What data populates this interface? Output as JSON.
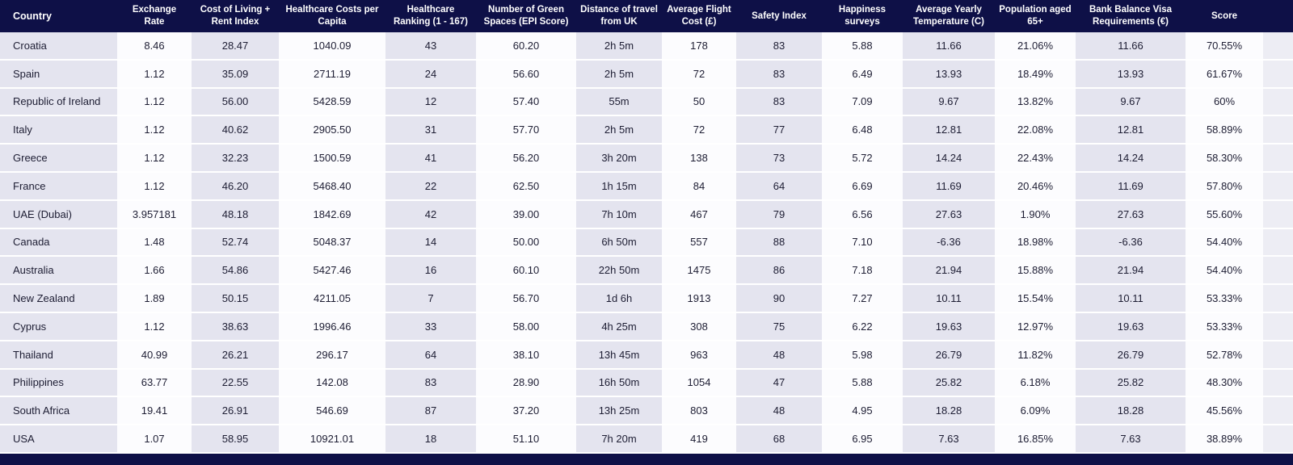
{
  "colors": {
    "header_bg": "#0e1047",
    "shaded_column_bg": "#e4e4ef",
    "row_text": "#1d1d33"
  },
  "column_keys": [
    "country",
    "exchange_rate",
    "cost_of_living_rent_index",
    "healthcare_costs_per_capita",
    "healthcare_ranking",
    "green_spaces_epi_score",
    "distance_of_travel_from_uk",
    "average_flight_cost",
    "safety_index",
    "happiness_surveys",
    "average_yearly_temperature",
    "population_aged_65_plus",
    "bank_balance_visa_requirements",
    "score"
  ],
  "chart_data": {
    "type": "table",
    "title": "",
    "columns": [
      "Country",
      "Exchange Rate",
      "Cost of Living + Rent Index",
      "Healthcare Costs per Capita",
      "Healthcare Ranking (1 - 167)",
      "Number of Green Spaces (EPI Score)",
      "Distance of travel from UK",
      "Average Flight Cost (£)",
      "Safety Index",
      "Happiness surveys",
      "Average Yearly Temperature (C)",
      "Population aged 65+",
      "Bank Balance Visa Requirements (€)",
      "Score"
    ],
    "rows": [
      [
        "Croatia",
        "8.46",
        "28.47",
        "1040.09",
        "43",
        "60.20",
        "2h 5m",
        "178",
        "83",
        "5.88",
        "11.66",
        "21.06%",
        "11.66",
        "70.55%"
      ],
      [
        "Spain",
        "1.12",
        "35.09",
        "2711.19",
        "24",
        "56.60",
        "2h 5m",
        "72",
        "83",
        "6.49",
        "13.93",
        "18.49%",
        "13.93",
        "61.67%"
      ],
      [
        "Republic of Ireland",
        "1.12",
        "56.00",
        "5428.59",
        "12",
        "57.40",
        "55m",
        "50",
        "83",
        "7.09",
        "9.67",
        "13.82%",
        "9.67",
        "60%"
      ],
      [
        "Italy",
        "1.12",
        "40.62",
        "2905.50",
        "31",
        "57.70",
        "2h 5m",
        "72",
        "77",
        "6.48",
        "12.81",
        "22.08%",
        "12.81",
        "58.89%"
      ],
      [
        "Greece",
        "1.12",
        "32.23",
        "1500.59",
        "41",
        "56.20",
        "3h 20m",
        "138",
        "73",
        "5.72",
        "14.24",
        "22.43%",
        "14.24",
        "58.30%"
      ],
      [
        "France",
        "1.12",
        "46.20",
        "5468.40",
        "22",
        "62.50",
        "1h 15m",
        "84",
        "64",
        "6.69",
        "11.69",
        "20.46%",
        "11.69",
        "57.80%"
      ],
      [
        "UAE (Dubai)",
        "3.957181",
        "48.18",
        "1842.69",
        "42",
        "39.00",
        "7h 10m",
        "467",
        "79",
        "6.56",
        "27.63",
        "1.90%",
        "27.63",
        "55.60%"
      ],
      [
        "Canada",
        "1.48",
        "52.74",
        "5048.37",
        "14",
        "50.00",
        "6h 50m",
        "557",
        "88",
        "7.10",
        "-6.36",
        "18.98%",
        "-6.36",
        "54.40%"
      ],
      [
        "Australia",
        "1.66",
        "54.86",
        "5427.46",
        "16",
        "60.10",
        "22h 50m",
        "1475",
        "86",
        "7.18",
        "21.94",
        "15.88%",
        "21.94",
        "54.40%"
      ],
      [
        "New Zealand",
        "1.89",
        "50.15",
        "4211.05",
        "7",
        "56.70",
        "1d 6h",
        "1913",
        "90",
        "7.27",
        "10.11",
        "15.54%",
        "10.11",
        "53.33%"
      ],
      [
        "Cyprus",
        "1.12",
        "38.63",
        "1996.46",
        "33",
        "58.00",
        "4h 25m",
        "308",
        "75",
        "6.22",
        "19.63",
        "12.97%",
        "19.63",
        "53.33%"
      ],
      [
        "Thailand",
        "40.99",
        "26.21",
        "296.17",
        "64",
        "38.10",
        "13h 45m",
        "963",
        "48",
        "5.98",
        "26.79",
        "11.82%",
        "26.79",
        "52.78%"
      ],
      [
        "Philippines",
        "63.77",
        "22.55",
        "142.08",
        "83",
        "28.90",
        "16h 50m",
        "1054",
        "47",
        "5.88",
        "25.82",
        "6.18%",
        "25.82",
        "48.30%"
      ],
      [
        "South Africa",
        "19.41",
        "26.91",
        "546.69",
        "87",
        "37.20",
        "13h 25m",
        "803",
        "48",
        "4.95",
        "18.28",
        "6.09%",
        "18.28",
        "45.56%"
      ],
      [
        "USA",
        "1.07",
        "58.95",
        "10921.01",
        "18",
        "51.10",
        "7h 20m",
        "419",
        "68",
        "6.95",
        "7.63",
        "16.85%",
        "7.63",
        "38.89%"
      ]
    ]
  }
}
